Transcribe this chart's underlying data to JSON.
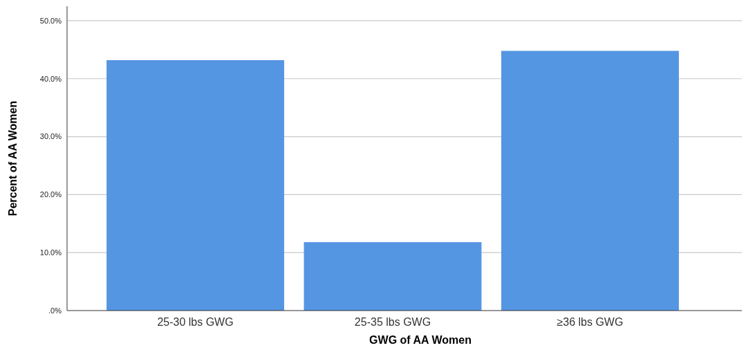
{
  "chart_data": {
    "type": "bar",
    "xlabel": "GWG of AA Women",
    "ylabel": "Percent of AA Women",
    "categories": [
      "25-30 lbs GWG",
      "25-35 lbs GWG",
      "≥36 lbs GWG"
    ],
    "values": [
      43.2,
      11.8,
      44.8
    ],
    "color": "#5596e3",
    "ylim": [
      0,
      52.5
    ],
    "yticks": [
      {
        "value": 0,
        "label": ".0%"
      },
      {
        "value": 10,
        "label": "10.0%"
      },
      {
        "value": 20,
        "label": "20.0%"
      },
      {
        "value": 30,
        "label": "30.0%"
      },
      {
        "value": 40,
        "label": "40.0%"
      },
      {
        "value": 50,
        "label": "50.0%"
      }
    ],
    "grid": "y"
  }
}
